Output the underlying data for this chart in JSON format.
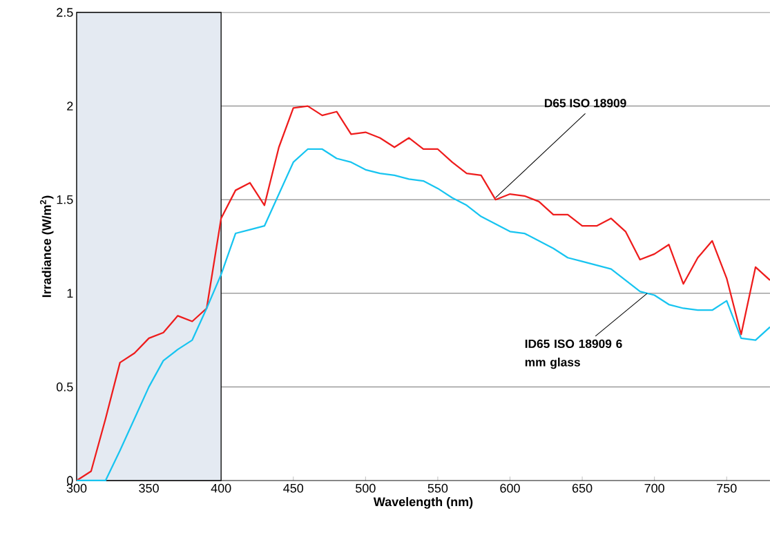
{
  "chart_data": {
    "type": "line",
    "xlabel": "Wavelength (nm)",
    "ylabel": "Irradiance (W/m$^{2}$)",
    "x": [
      300,
      310,
      320,
      330,
      340,
      350,
      360,
      370,
      380,
      390,
      400,
      410,
      420,
      430,
      440,
      450,
      460,
      470,
      480,
      490,
      500,
      510,
      520,
      530,
      540,
      550,
      560,
      570,
      580,
      590,
      600,
      610,
      620,
      630,
      640,
      650,
      660,
      670,
      680,
      690,
      700,
      710,
      720,
      730,
      740,
      750,
      760,
      770,
      780
    ],
    "series": [
      {
        "color": "#ee1c1c",
        "values": [
          0,
          0.05,
          0.33,
          0.63,
          0.68,
          0.76,
          0.79,
          0.88,
          0.85,
          0.92,
          1.4,
          1.55,
          1.59,
          1.47,
          1.78,
          1.99,
          2.0,
          1.95,
          1.97,
          1.85,
          1.86,
          1.83,
          1.78,
          1.83,
          1.77,
          1.77,
          1.7,
          1.64,
          1.63,
          1.5,
          1.53,
          1.52,
          1.49,
          1.42,
          1.42,
          1.36,
          1.36,
          1.4,
          1.33,
          1.18,
          1.21,
          1.26,
          1.05,
          1.19,
          1.28,
          1.08,
          0.78,
          1.14,
          1.07
        ]
      },
      {
        "color": "#17c4f0",
        "values": [
          0,
          0,
          0,
          0.16,
          0.33,
          0.5,
          0.64,
          0.7,
          0.75,
          0.92,
          1.1,
          1.32,
          1.34,
          1.36,
          1.53,
          1.7,
          1.77,
          1.77,
          1.72,
          1.7,
          1.66,
          1.64,
          1.63,
          1.61,
          1.6,
          1.56,
          1.51,
          1.47,
          1.41,
          1.37,
          1.33,
          1.32,
          1.28,
          1.24,
          1.19,
          1.17,
          1.15,
          1.13,
          1.07,
          1.01,
          0.99,
          0.94,
          0.92,
          0.91,
          0.91,
          0.96,
          0.76,
          0.75,
          0.82
        ]
      }
    ],
    "xlim": [
      300,
      780
    ],
    "ylim": [
      0,
      2.5
    ],
    "xticks": [
      300,
      350,
      400,
      450,
      500,
      550,
      600,
      650,
      700,
      750
    ],
    "yticks": [
      0,
      0.5,
      1,
      1.5,
      2,
      2.5
    ],
    "grid": "y",
    "bands": [
      {
        "axis": "x",
        "from": 300,
        "to": 400,
        "color": "#e4eaf2"
      }
    ],
    "annotations": [
      {
        "text": "D65 ISO 18909",
        "x": 590,
        "y": 1.51
      },
      {
        "text": "ID65 ISO 18909 6 mm glass",
        "x": 695,
        "y": 1.0
      }
    ]
  }
}
